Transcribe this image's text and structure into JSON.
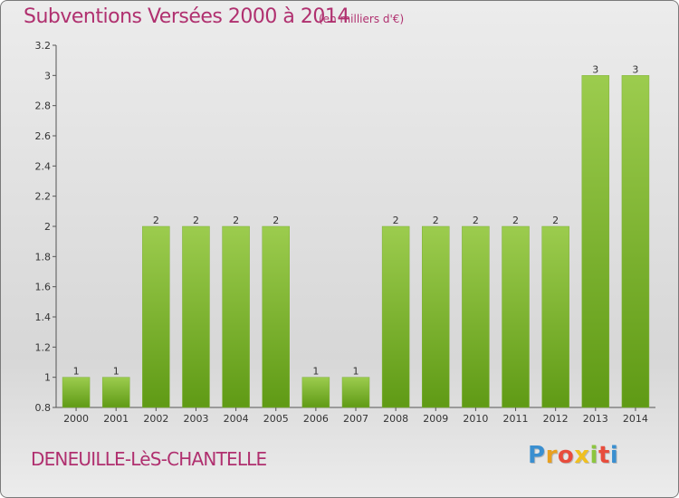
{
  "header": {
    "title": "Subventions Versées 2000 à 2014",
    "subtitle": "(en milliers d'€)"
  },
  "footer": {
    "commune": "DENEUILLE-LèS-CHANTELLE",
    "logo_letters": [
      "P",
      "r",
      "o",
      "x",
      "i",
      "t",
      "i"
    ],
    "logo_colors": [
      "#3a8fd0",
      "#e8a020",
      "#e84c3c",
      "#f0c020",
      "#8cc63f",
      "#e84c3c",
      "#3a8fd0"
    ]
  },
  "chart_data": {
    "type": "bar",
    "categories": [
      "2000",
      "2001",
      "2002",
      "2003",
      "2004",
      "2005",
      "2006",
      "2007",
      "2008",
      "2009",
      "2010",
      "2011",
      "2012",
      "2013",
      "2014"
    ],
    "values": [
      1,
      1,
      2,
      2,
      2,
      2,
      1,
      1,
      2,
      2,
      2,
      2,
      2,
      3,
      3
    ],
    "data_labels": [
      "1",
      "1",
      "2",
      "2",
      "2",
      "2",
      "1",
      "1",
      "2",
      "2",
      "2",
      "2",
      "2",
      "3",
      "3"
    ],
    "title": "Subventions Versées 2000 à 2014",
    "xlabel": "",
    "ylabel": "",
    "ylim": [
      0.8,
      3.2
    ],
    "yticks": [
      "0.8",
      "1",
      "1.2",
      "1.4",
      "1.6",
      "1.8",
      "2",
      "2.2",
      "2.4",
      "2.6",
      "2.8",
      "3",
      "3.2"
    ],
    "bar_color_top": "#9ccc4e",
    "bar_color_bottom": "#5f9a15",
    "grid": false,
    "legend": "none"
  }
}
